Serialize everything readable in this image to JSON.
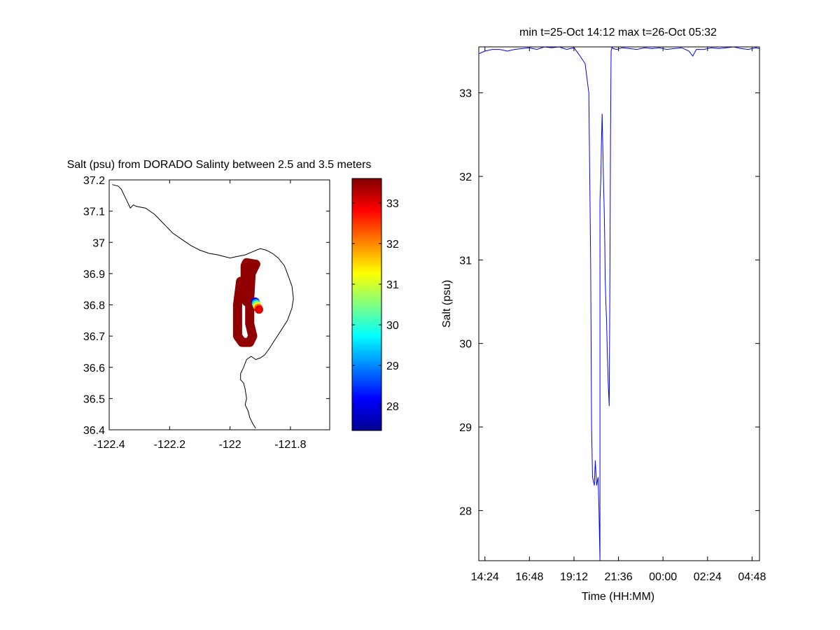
{
  "chart_data": [
    {
      "type": "scatter",
      "title": "Salt (psu) from DORADO Salinty between 2.5 and 3.5 meters",
      "xlabel": "",
      "ylabel": "",
      "xlim": [
        -122.4,
        -121.67
      ],
      "ylim": [
        36.4,
        37.2
      ],
      "xticks": [
        -122.4,
        -122.2,
        -122,
        -121.8
      ],
      "xtick_labels": [
        "-122.4",
        "-122.2",
        "-122",
        "-121.8"
      ],
      "yticks": [
        36.4,
        36.5,
        36.6,
        36.7,
        36.8,
        36.9,
        37,
        37.1,
        37.2
      ],
      "ytick_labels": [
        "36.4",
        "36.5",
        "36.6",
        "36.7",
        "36.8",
        "36.9",
        "37",
        "37.1",
        "37.2"
      ],
      "grid": false,
      "coastline": {
        "lon": [
          -122.39,
          -122.37,
          -122.36,
          -122.35,
          -122.34,
          -122.33,
          -122.32,
          -122.31,
          -122.28,
          -122.25,
          -122.22,
          -122.19,
          -122.16,
          -122.13,
          -122.1,
          -122.07,
          -122.04,
          -122.0,
          -121.975,
          -121.95,
          -121.925,
          -121.9,
          -121.88,
          -121.86,
          -121.84,
          -121.82,
          -121.81,
          -121.795,
          -121.79,
          -121.795,
          -121.81,
          -121.83,
          -121.85,
          -121.87,
          -121.885,
          -121.9,
          -121.915,
          -121.93,
          -121.945,
          -121.955,
          -121.965,
          -121.965,
          -121.955,
          -121.95,
          -121.945,
          -121.95,
          -121.94,
          -121.935,
          -121.925,
          -121.915
        ],
        "lat": [
          37.185,
          37.18,
          37.17,
          37.15,
          37.13,
          37.11,
          37.12,
          37.115,
          37.11,
          37.09,
          37.06,
          37.03,
          37.01,
          36.99,
          36.975,
          36.965,
          36.96,
          36.95,
          36.955,
          36.96,
          36.97,
          36.98,
          36.975,
          36.965,
          36.95,
          36.925,
          36.9,
          36.86,
          36.82,
          36.79,
          36.75,
          36.72,
          36.69,
          36.66,
          36.64,
          36.63,
          36.625,
          36.635,
          36.625,
          36.6,
          36.58,
          36.56,
          36.55,
          36.53,
          36.5,
          36.48,
          36.46,
          36.44,
          36.42,
          36.405
        ]
      },
      "track": {
        "segments": [
          {
            "lon": [
              -121.915,
              -121.945,
              -121.95,
              -121.95,
              -121.945,
              -121.915
            ],
            "lat": [
              36.795,
              36.81,
              36.87,
              36.925,
              36.935,
              36.93
            ],
            "value": 33.5
          },
          {
            "lon": [
              -121.915,
              -121.93,
              -121.935,
              -121.935,
              -121.925,
              -121.935,
              -121.96,
              -121.975,
              -121.975,
              -121.965
            ],
            "lat": [
              36.93,
              36.9,
              36.82,
              36.74,
              36.7,
              36.68,
              36.68,
              36.7,
              36.8,
              36.875
            ],
            "value": 33.5
          },
          {
            "lon": [
              -121.916,
              -121.914,
              -121.912,
              -121.909,
              -121.906,
              -121.904
            ],
            "lat": [
              36.81,
              36.805,
              36.8,
              36.795,
              36.79,
              36.785
            ],
            "values": [
              28.2,
              29.3,
              30.4,
              31.3,
              32.2,
              33.0
            ]
          }
        ]
      }
    },
    {
      "type": "colorbar",
      "colormap": "jet",
      "range": [
        27.4,
        33.6
      ],
      "ticks": [
        28,
        29,
        30,
        31,
        32,
        33
      ],
      "tick_labels": [
        "28",
        "29",
        "30",
        "31",
        "32",
        "33"
      ]
    },
    {
      "type": "line",
      "title": "min t=25-Oct 14:12 max t=26-Oct 05:32",
      "xlabel": "Time (HH:MM)",
      "ylabel": "Salt (psu)",
      "xlim_hours": [
        14.07,
        29.2
      ],
      "ylim": [
        27.4,
        33.55
      ],
      "xticks_hours": [
        14.4,
        16.8,
        19.2,
        21.6,
        24.0,
        26.4,
        28.8
      ],
      "xtick_labels": [
        "14:24",
        "16:48",
        "19:12",
        "21:36",
        "00:00",
        "02:24",
        "04:48"
      ],
      "yticks": [
        28,
        29,
        30,
        31,
        32,
        33
      ],
      "ytick_labels": [
        "28",
        "29",
        "30",
        "31",
        "32",
        "33"
      ],
      "grid": false,
      "series": [
        {
          "color": "#0000ff",
          "x": [
            14.1,
            14.4,
            14.8,
            15.2,
            15.6,
            16.0,
            16.4,
            16.8,
            17.2,
            17.6,
            18.0,
            18.4,
            18.8,
            19.2,
            19.5,
            19.8,
            20.0,
            20.1,
            20.15,
            20.2,
            20.3,
            20.35,
            20.42,
            20.5,
            20.55,
            20.6,
            20.6,
            20.65,
            20.68,
            20.72,
            20.76,
            20.8,
            20.83,
            20.86,
            20.88,
            20.92,
            20.96,
            21.0,
            21.05,
            21.1,
            21.13,
            21.17,
            21.2,
            21.2,
            21.25,
            21.3,
            21.5,
            21.8,
            22.2,
            22.6,
            23.0,
            23.4,
            23.8,
            24.2,
            24.6,
            25.0,
            25.4,
            25.6,
            25.7,
            25.8,
            26.2,
            26.6,
            27.0,
            27.4,
            27.8,
            28.2,
            28.6,
            29.0,
            29.2
          ],
          "y": [
            33.47,
            33.5,
            33.52,
            33.52,
            33.5,
            33.52,
            33.53,
            33.54,
            33.52,
            33.55,
            33.54,
            33.55,
            33.52,
            33.54,
            33.45,
            33.35,
            33.0,
            31.0,
            29.0,
            28.4,
            28.3,
            28.6,
            28.3,
            28.4,
            28.0,
            27.4,
            31.7,
            32.0,
            32.4,
            32.75,
            32.3,
            31.85,
            31.6,
            31.2,
            30.8,
            30.5,
            30.25,
            29.85,
            29.5,
            29.25,
            30.4,
            32.5,
            33.5,
            33.5,
            33.55,
            33.53,
            33.52,
            33.54,
            33.53,
            33.52,
            33.54,
            33.53,
            33.54,
            33.52,
            33.53,
            33.54,
            33.5,
            33.44,
            33.48,
            33.52,
            33.52,
            33.54,
            33.53,
            33.54,
            33.55,
            33.53,
            33.52,
            33.54,
            33.53
          ]
        }
      ]
    }
  ]
}
